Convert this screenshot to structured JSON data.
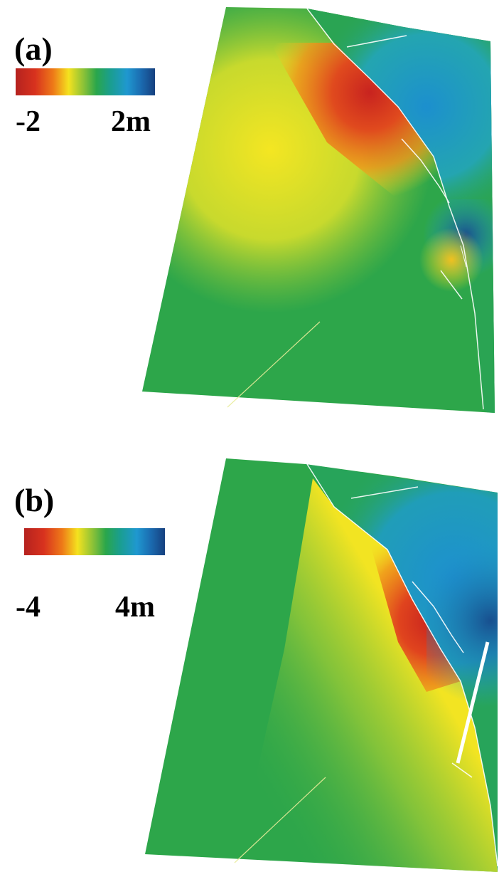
{
  "panels": [
    {
      "label": "(a)",
      "colorbar": {
        "min_label": "-2",
        "max_label": "2m"
      }
    },
    {
      "label": "(b)",
      "colorbar": {
        "min_label": "-4",
        "max_label": "4m"
      }
    }
  ],
  "colors": {
    "red": "#c8231f",
    "orange": "#f0821a",
    "yellow": "#f2e422",
    "green": "#2ca64a",
    "cyan": "#1e9fcf",
    "blue": "#18538f",
    "fault_line": "#ffffff"
  }
}
